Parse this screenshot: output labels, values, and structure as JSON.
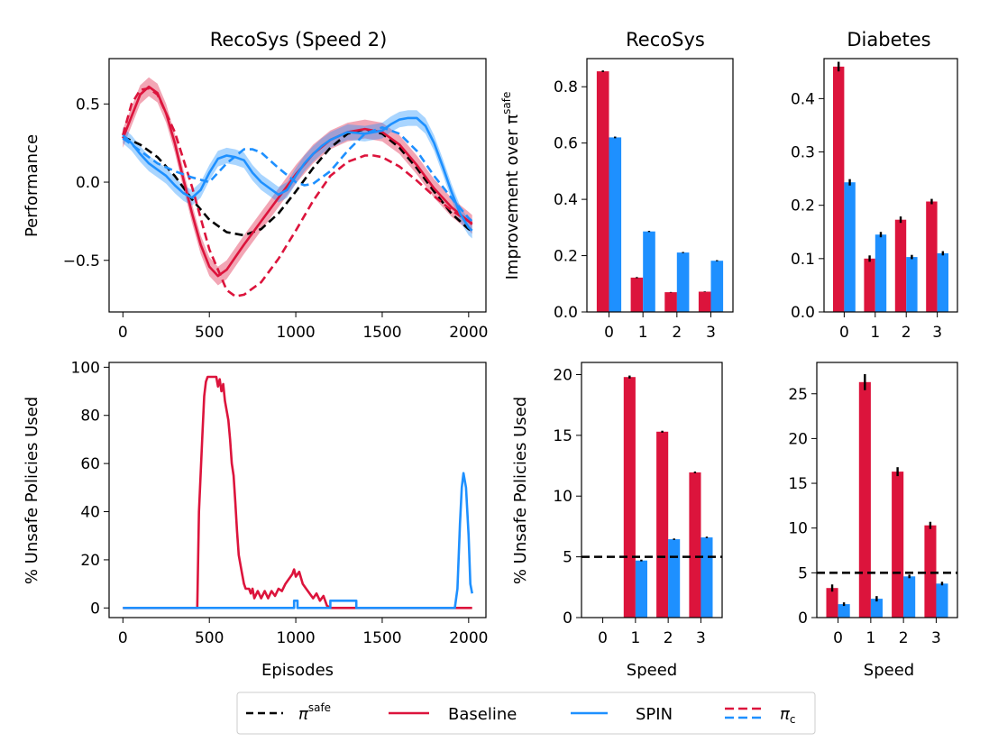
{
  "colors": {
    "baseline": "#dc143c",
    "spin": "#1e90ff",
    "safe": "#000000",
    "err": "#000000",
    "overlap": "#6a5aa8"
  },
  "legend": {
    "safe": {
      "base": "π",
      "sup": "safe"
    },
    "baseline": "Baseline",
    "spin": "SPIN",
    "pic": {
      "base": "π",
      "sub": "c"
    }
  },
  "chart_data": [
    {
      "id": "perf",
      "type": "line",
      "title": "RecoSys (Speed 2)",
      "xlabel": "",
      "ylabel": "Performance",
      "xlim": [
        -80,
        2100
      ],
      "ylim": [
        -0.83,
        0.79
      ],
      "xticks": [
        0,
        500,
        1000,
        1500,
        2000
      ],
      "yticks": [
        0.5,
        0.0,
        -0.5
      ],
      "ytick_labels": [
        "0.5",
        "0.0",
        "−0.5"
      ],
      "grid": false,
      "series": [
        {
          "key": "safe",
          "color": "safe",
          "style": "dashed",
          "x": [
            0,
            100,
            200,
            300,
            400,
            500,
            600,
            700,
            800,
            900,
            1000,
            1100,
            1200,
            1300,
            1400,
            1500,
            1600,
            1700,
            1800,
            1900,
            2000,
            2020
          ],
          "y": [
            0.29,
            0.24,
            0.16,
            0.04,
            -0.11,
            -0.24,
            -0.32,
            -0.34,
            -0.3,
            -0.2,
            -0.06,
            0.09,
            0.22,
            0.31,
            0.34,
            0.31,
            0.22,
            0.09,
            -0.06,
            -0.2,
            -0.3,
            -0.31
          ]
        },
        {
          "key": "baseline",
          "color": "baseline",
          "style": "solid",
          "band": 0.06,
          "x": [
            0,
            50,
            100,
            150,
            200,
            250,
            300,
            350,
            400,
            450,
            500,
            550,
            600,
            650,
            700,
            800,
            900,
            1000,
            1100,
            1200,
            1300,
            1400,
            1500,
            1600,
            1700,
            1800,
            1900,
            2000,
            2020
          ],
          "y": [
            0.28,
            0.42,
            0.56,
            0.61,
            0.57,
            0.44,
            0.25,
            0.02,
            -0.2,
            -0.4,
            -0.54,
            -0.6,
            -0.56,
            -0.48,
            -0.4,
            -0.25,
            -0.1,
            0.05,
            0.18,
            0.27,
            0.32,
            0.34,
            0.32,
            0.24,
            0.11,
            -0.04,
            -0.16,
            -0.25,
            -0.27
          ]
        },
        {
          "key": "pic_base",
          "color": "baseline",
          "style": "dashed",
          "x": [
            0,
            50,
            100,
            150,
            200,
            300,
            400,
            500,
            600,
            650,
            700,
            800,
            900,
            1000,
            1100,
            1200,
            1300,
            1400,
            1450,
            1500,
            1600,
            1700,
            1800,
            1900,
            2000,
            2020
          ],
          "y": [
            0.3,
            0.5,
            0.59,
            0.6,
            0.56,
            0.32,
            -0.03,
            -0.43,
            -0.69,
            -0.73,
            -0.72,
            -0.64,
            -0.49,
            -0.31,
            -0.12,
            0.04,
            0.13,
            0.17,
            0.17,
            0.16,
            0.1,
            0.01,
            -0.09,
            -0.18,
            -0.25,
            -0.26
          ]
        },
        {
          "key": "spin",
          "color": "spin",
          "style": "solid",
          "band": 0.05,
          "x": [
            0,
            50,
            100,
            150,
            200,
            250,
            300,
            350,
            400,
            450,
            500,
            550,
            600,
            650,
            700,
            750,
            800,
            850,
            900,
            950,
            1000,
            1050,
            1100,
            1150,
            1200,
            1300,
            1400,
            1500,
            1550,
            1600,
            1650,
            1700,
            1750,
            1800,
            1850,
            1900,
            1950,
            2000,
            2020
          ],
          "y": [
            0.3,
            0.25,
            0.18,
            0.12,
            0.08,
            0.04,
            -0.02,
            -0.07,
            -0.1,
            -0.05,
            0.06,
            0.15,
            0.17,
            0.16,
            0.14,
            0.06,
            0.0,
            -0.04,
            -0.08,
            -0.05,
            0.04,
            0.12,
            0.18,
            0.23,
            0.27,
            0.32,
            0.31,
            0.33,
            0.37,
            0.4,
            0.41,
            0.41,
            0.36,
            0.25,
            0.1,
            -0.06,
            -0.2,
            -0.29,
            -0.31
          ]
        },
        {
          "key": "pic_spin",
          "color": "spin",
          "style": "dashed",
          "x": [
            0,
            100,
            200,
            300,
            400,
            500,
            600,
            700,
            750,
            800,
            900,
            1000,
            1050,
            1100,
            1200,
            1300,
            1400,
            1500,
            1600,
            1700,
            1800,
            1900,
            2000,
            2020
          ],
          "y": [
            0.28,
            0.2,
            0.12,
            0.07,
            0.03,
            0.0,
            0.12,
            0.21,
            0.21,
            0.19,
            0.09,
            0.0,
            -0.02,
            -0.01,
            0.07,
            0.2,
            0.31,
            0.35,
            0.31,
            0.2,
            0.04,
            -0.1,
            -0.23,
            -0.25
          ]
        }
      ]
    },
    {
      "id": "unsafe",
      "type": "line",
      "title": "",
      "xlabel": "Episodes",
      "ylabel": "% Unsafe Policies Used",
      "xlim": [
        -80,
        2100
      ],
      "ylim": [
        -4,
        102
      ],
      "xticks": [
        0,
        500,
        1000,
        1500,
        2000
      ],
      "yticks": [
        0,
        20,
        40,
        60,
        80,
        100
      ],
      "grid": false,
      "series": [
        {
          "key": "baseline",
          "color": "baseline",
          "style": "solid",
          "x": [
            0,
            430,
            440,
            460,
            470,
            480,
            490,
            500,
            540,
            550,
            560,
            570,
            580,
            590,
            600,
            610,
            620,
            630,
            640,
            650,
            660,
            670,
            680,
            690,
            700,
            710,
            720,
            730,
            740,
            750,
            760,
            780,
            800,
            820,
            840,
            860,
            880,
            900,
            920,
            940,
            960,
            980,
            990,
            1000,
            1020,
            1040,
            1060,
            1080,
            1100,
            1120,
            1140,
            1160,
            1180,
            1200,
            1940,
            2020
          ],
          "y": [
            0,
            0,
            40,
            72,
            88,
            94,
            96,
            96,
            96,
            92,
            95,
            90,
            93,
            86,
            82,
            78,
            70,
            60,
            55,
            44,
            32,
            22,
            18,
            14,
            10,
            8,
            8,
            8,
            6,
            8,
            4,
            7,
            4,
            7,
            4,
            7,
            5,
            8,
            7,
            10,
            12,
            14,
            16,
            13,
            15,
            10,
            8,
            6,
            4,
            6,
            3,
            5,
            1,
            0,
            0,
            0
          ]
        },
        {
          "key": "spin",
          "color": "spin",
          "style": "solid",
          "x": [
            0,
            990,
            990,
            1010,
            1010,
            1200,
            1200,
            1350,
            1350,
            1920,
            1935,
            1950,
            1960,
            1970,
            1985,
            2000,
            2010,
            2020
          ],
          "y": [
            0,
            0,
            3,
            3,
            0,
            0,
            3,
            3,
            0,
            0,
            8,
            35,
            50,
            56,
            50,
            30,
            10,
            6
          ]
        }
      ]
    },
    {
      "id": "reco_improve",
      "type": "bar",
      "title": "RecoSys",
      "xlabel": "",
      "ylabel": {
        "base": "Improvement over π",
        "sup": "safe"
      },
      "categories": [
        "0",
        "1",
        "2",
        "3"
      ],
      "ylim": [
        0,
        0.9
      ],
      "yticks": [
        0.0,
        0.2,
        0.4,
        0.6,
        0.8
      ],
      "grid": false,
      "series": [
        {
          "name": "Baseline",
          "color": "baseline",
          "values": [
            0.855,
            0.122,
            0.07,
            0.072
          ],
          "errors": [
            0.003,
            0.002,
            0.001,
            0.001
          ]
        },
        {
          "name": "SPIN",
          "color": "spin",
          "values": [
            0.62,
            0.286,
            0.211,
            0.182
          ],
          "errors": [
            0.003,
            0.002,
            0.002,
            0.002
          ]
        }
      ]
    },
    {
      "id": "diab_improve",
      "type": "bar",
      "title": "Diabetes",
      "xlabel": "",
      "ylabel": "",
      "categories": [
        "0",
        "1",
        "2",
        "3"
      ],
      "ylim": [
        0,
        0.475
      ],
      "yticks": [
        0.0,
        0.1,
        0.2,
        0.3,
        0.4
      ],
      "grid": false,
      "series": [
        {
          "name": "Baseline",
          "color": "baseline",
          "values": [
            0.46,
            0.1,
            0.173,
            0.207
          ],
          "errors": [
            0.009,
            0.006,
            0.006,
            0.005
          ]
        },
        {
          "name": "SPIN",
          "color": "spin",
          "values": [
            0.243,
            0.145,
            0.103,
            0.11
          ],
          "errors": [
            0.006,
            0.005,
            0.004,
            0.004
          ]
        }
      ]
    },
    {
      "id": "reco_unsafe",
      "type": "bar",
      "title": "",
      "xlabel": "Speed",
      "ylabel": "% Unsafe Policies Used",
      "categories": [
        "0",
        "1",
        "2",
        "3"
      ],
      "ylim": [
        0,
        21
      ],
      "yticks": [
        0,
        5,
        10,
        15,
        20
      ],
      "hline": 5,
      "grid": false,
      "series": [
        {
          "name": "Baseline",
          "color": "baseline",
          "values": [
            0,
            19.8,
            15.3,
            11.95
          ],
          "errors": [
            0,
            0.12,
            0.08,
            0.07
          ]
        },
        {
          "name": "SPIN",
          "color": "spin",
          "values": [
            0,
            4.7,
            6.45,
            6.6
          ],
          "errors": [
            0,
            0.07,
            0.06,
            0.06
          ]
        }
      ]
    },
    {
      "id": "diab_unsafe",
      "type": "bar",
      "title": "",
      "xlabel": "Speed",
      "ylabel": "",
      "categories": [
        "0",
        "1",
        "2",
        "3"
      ],
      "ylim": [
        0,
        28.5
      ],
      "yticks": [
        0,
        5,
        10,
        15,
        20,
        25
      ],
      "hline": 5,
      "grid": false,
      "series": [
        {
          "name": "Baseline",
          "color": "baseline",
          "values": [
            3.3,
            26.3,
            16.3,
            10.3
          ],
          "errors": [
            0.4,
            0.9,
            0.5,
            0.4
          ]
        },
        {
          "name": "SPIN",
          "color": "spin",
          "values": [
            1.5,
            2.1,
            4.6,
            3.8
          ],
          "errors": [
            0.2,
            0.3,
            0.2,
            0.2
          ]
        }
      ]
    }
  ]
}
